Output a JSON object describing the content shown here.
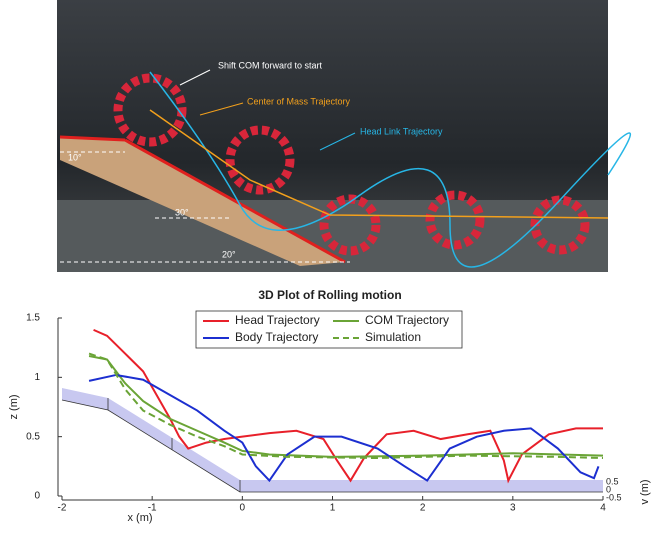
{
  "photo": {
    "annotations": [
      "Shift COM forward to start",
      "Center of Mass Trajectory",
      "Head Link Trajectory",
      "10°",
      "30°",
      "20°"
    ]
  },
  "chart_data": {
    "type": "line3d",
    "title": "3D Plot of Rolling motion",
    "x_label": "x (m)",
    "y_label": "z (m)",
    "v_label": "v (m)",
    "xlim": [
      -2,
      4
    ],
    "xticks": [
      -2,
      -1,
      0,
      1,
      2,
      3,
      4
    ],
    "ylim": [
      0,
      1.5
    ],
    "yticks": [
      0,
      0.5,
      1,
      1.5
    ],
    "vlim": [
      -0.5,
      0.5
    ],
    "vticks": [
      0.5,
      0,
      -0.5
    ],
    "legend": "top",
    "series": [
      {
        "name": "Head Trajectory",
        "color": "#e8202a",
        "dash": "solid",
        "x": [
          -1.65,
          -1.5,
          -1.3,
          -1.1,
          -0.95,
          -0.8,
          -0.7,
          -0.6,
          -0.4,
          -0.2,
          0,
          0.3,
          0.6,
          0.9,
          1.05,
          1.2,
          1.35,
          1.6,
          1.9,
          2.2,
          2.5,
          2.75,
          2.9,
          2.95,
          3.1,
          3.4,
          3.7,
          4
        ],
        "values": [
          1.4,
          1.35,
          1.2,
          1.05,
          0.85,
          0.65,
          0.5,
          0.4,
          0.45,
          0.48,
          0.5,
          0.53,
          0.55,
          0.48,
          0.3,
          0.13,
          0.32,
          0.52,
          0.55,
          0.48,
          0.52,
          0.55,
          0.3,
          0.13,
          0.35,
          0.52,
          0.57,
          0.57
        ]
      },
      {
        "name": "COM Trajectory",
        "color": "#6aa436",
        "dash": "solid",
        "x": [
          -1.7,
          -1.5,
          -1.3,
          -1.1,
          -0.8,
          -0.5,
          -0.2,
          0,
          0.3,
          1,
          2,
          3,
          4
        ],
        "values": [
          1.18,
          1.15,
          0.95,
          0.8,
          0.65,
          0.55,
          0.45,
          0.38,
          0.35,
          0.33,
          0.34,
          0.36,
          0.34
        ]
      },
      {
        "name": "Body Trajectory",
        "color": "#1c2fd0",
        "dash": "solid",
        "x": [
          -1.7,
          -1.4,
          -1.1,
          -0.8,
          -0.5,
          -0.2,
          0,
          0.15,
          0.3,
          0.5,
          0.8,
          1.1,
          1.5,
          1.8,
          2.05,
          2.3,
          2.6,
          2.9,
          3.2,
          3.5,
          3.75,
          3.9,
          3.95
        ],
        "values": [
          0.97,
          1.02,
          0.98,
          0.85,
          0.72,
          0.55,
          0.45,
          0.25,
          0.13,
          0.35,
          0.5,
          0.5,
          0.4,
          0.25,
          0.13,
          0.4,
          0.5,
          0.55,
          0.57,
          0.4,
          0.2,
          0.15,
          0.25
        ]
      },
      {
        "name": "Simulation",
        "color": "#6aa436",
        "dash": "dashed",
        "x": [
          -1.7,
          -1.5,
          -1.3,
          -1.1,
          -0.8,
          -0.5,
          -0.2,
          0,
          0.5,
          1.5,
          2.5,
          3.5,
          4
        ],
        "values": [
          1.2,
          1.15,
          0.9,
          0.72,
          0.6,
          0.5,
          0.42,
          0.35,
          0.33,
          0.32,
          0.34,
          0.33,
          0.32
        ]
      }
    ]
  }
}
